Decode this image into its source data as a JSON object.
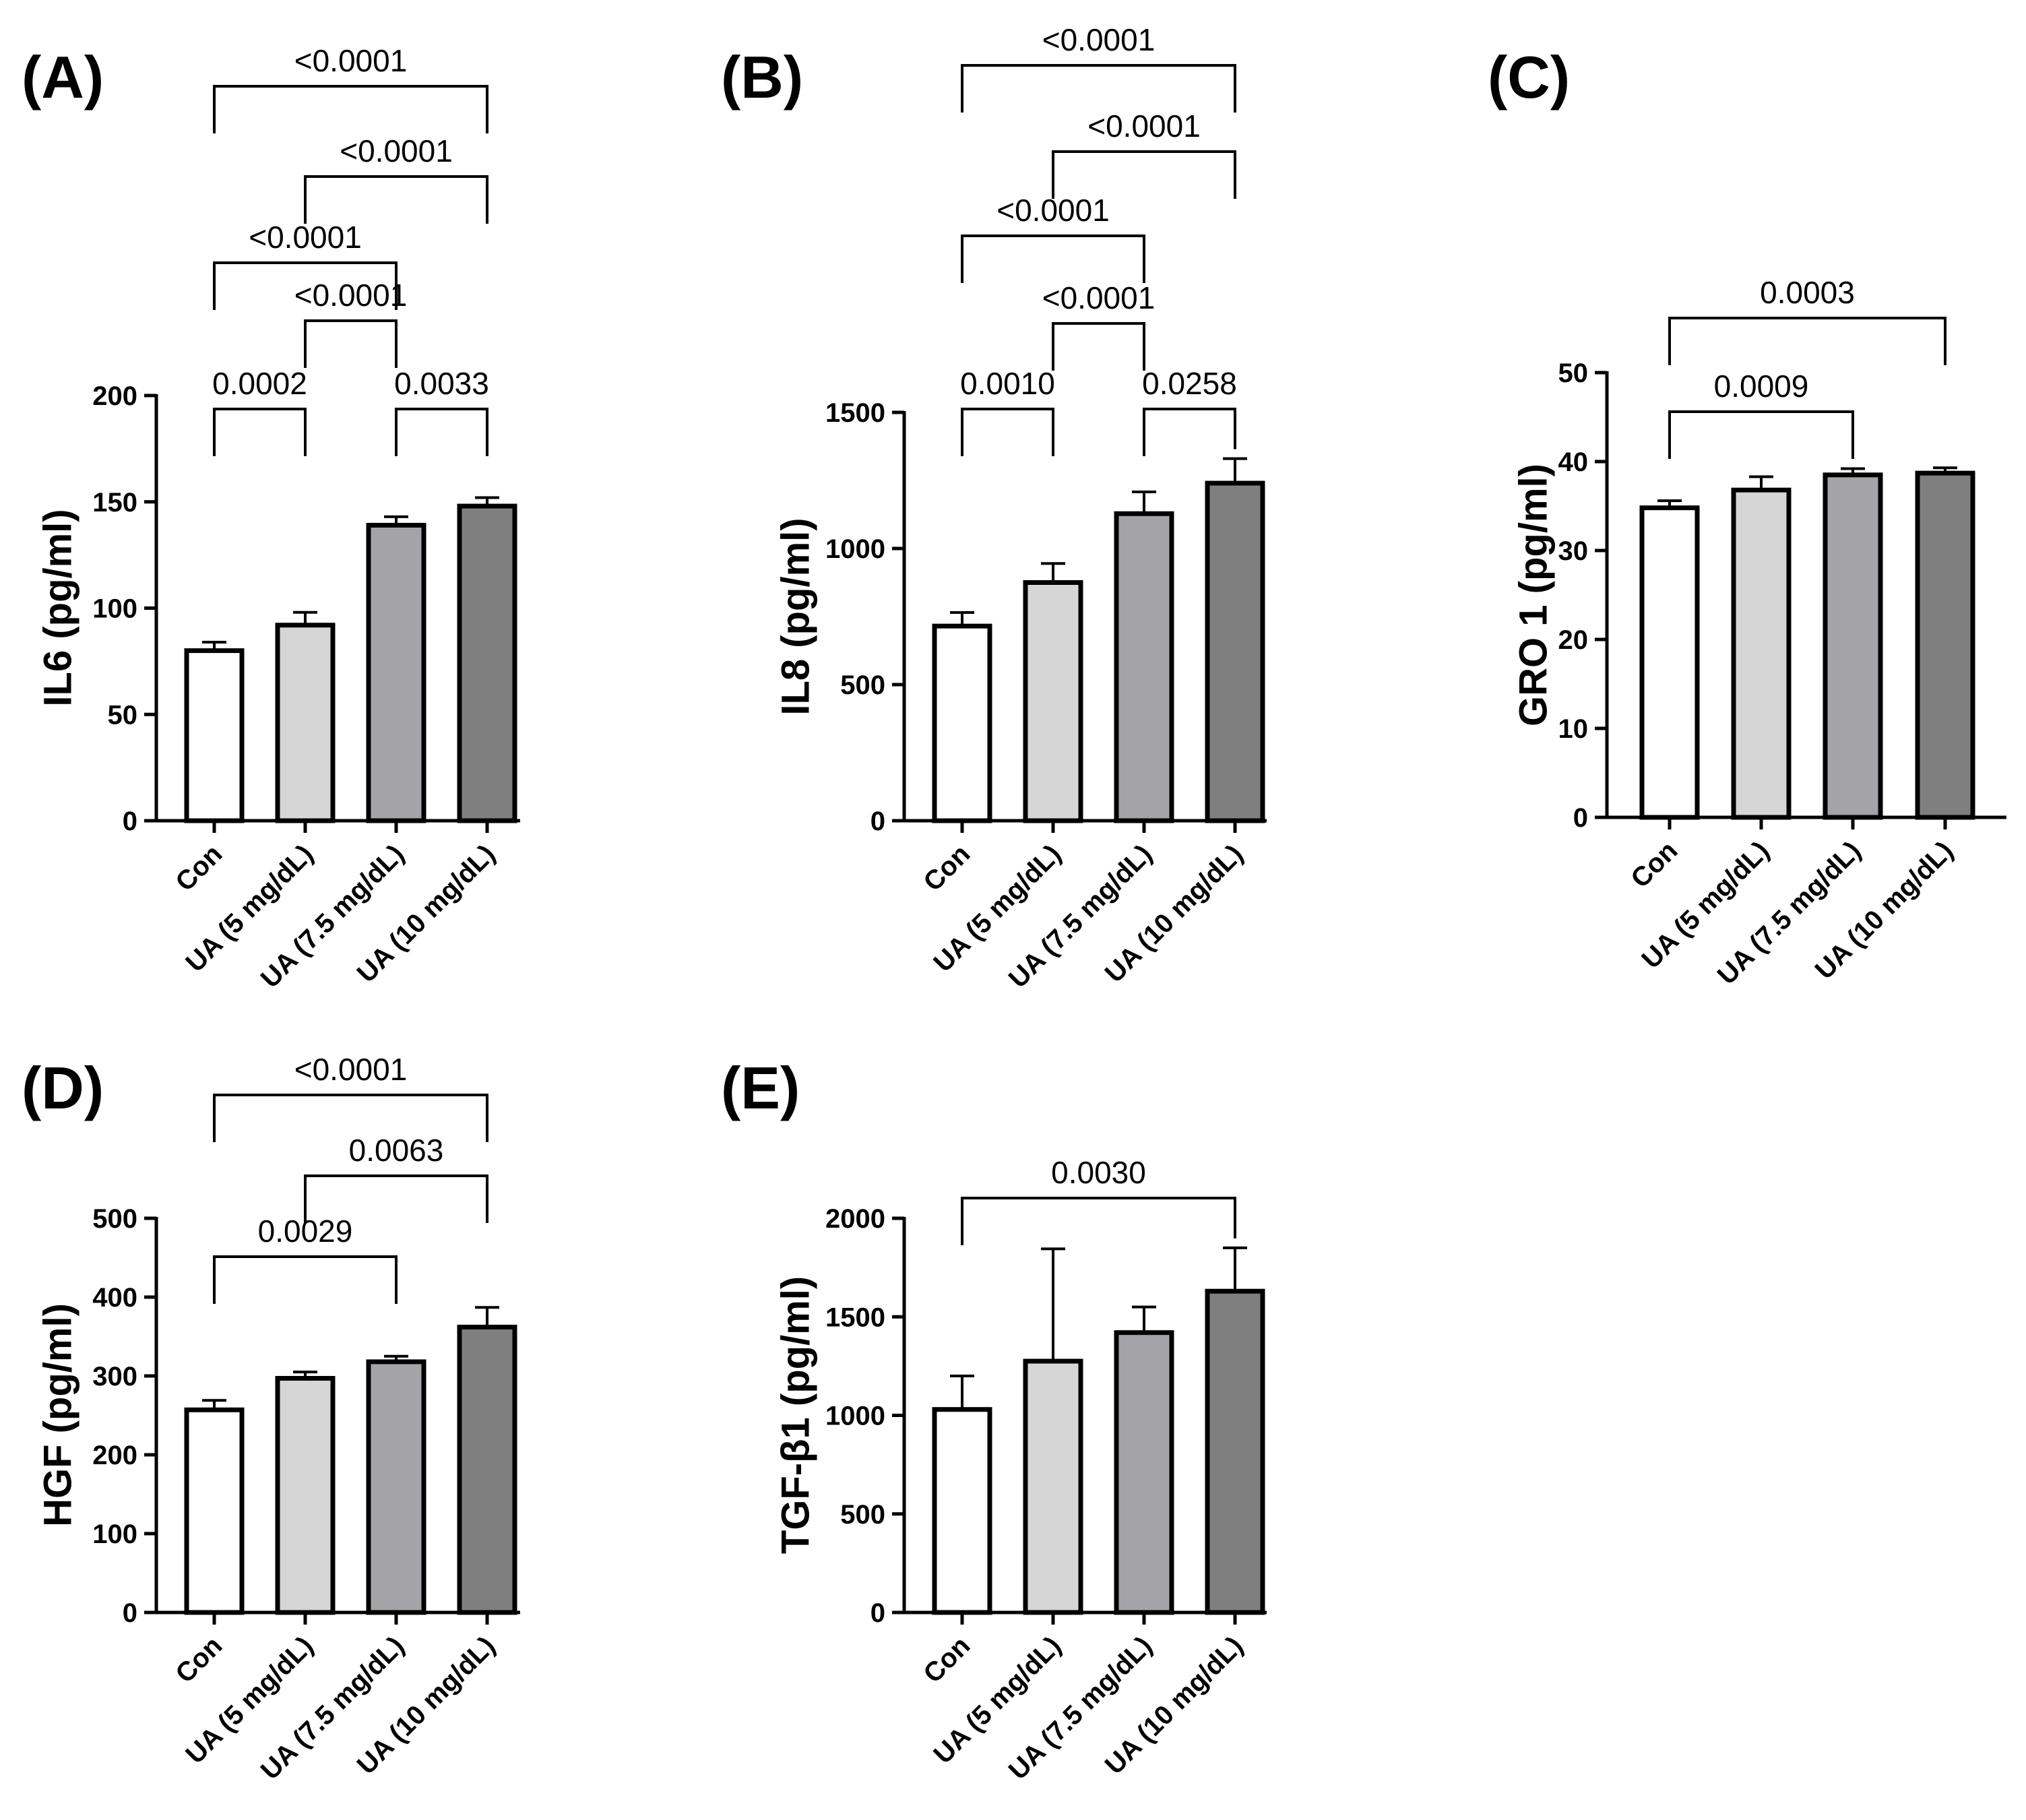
{
  "chart_data": [
    {
      "panel": "(A)",
      "type": "bar",
      "ylabel": "IL6 (pg/ml)",
      "categories": [
        "Con",
        "UA (5 mg/dL)",
        "UA (7.5 mg/dL)",
        "UA (10 mg/dL)"
      ],
      "values": [
        80,
        92,
        139,
        148
      ],
      "errors": [
        4,
        6,
        4,
        4
      ],
      "ylim": [
        0,
        200
      ],
      "yticks": [
        "0",
        "50",
        "100",
        "150",
        "200"
      ],
      "ytick_values": [
        0,
        50,
        100,
        150,
        200
      ],
      "comparisons": [
        {
          "pair": [
            0,
            1
          ],
          "p": "0.0002"
        },
        {
          "pair": [
            2,
            3
          ],
          "p": "0.0033"
        },
        {
          "pair": [
            1,
            2
          ],
          "p": "<0.0001"
        },
        {
          "pair": [
            0,
            2
          ],
          "p": "<0.0001"
        },
        {
          "pair": [
            1,
            3
          ],
          "p": "<0.0001"
        },
        {
          "pair": [
            0,
            3
          ],
          "p": "<0.0001"
        }
      ]
    },
    {
      "panel": "(B)",
      "type": "bar",
      "ylabel": "IL8 (pg/ml)",
      "categories": [
        "Con",
        "UA (5 mg/dL)",
        "UA (7.5 mg/dL)",
        "UA (10 mg/dL)"
      ],
      "values": [
        715,
        875,
        1128,
        1240
      ],
      "errors": [
        50,
        70,
        80,
        90
      ],
      "ylim": [
        0,
        1500
      ],
      "yticks": [
        "0",
        "500",
        "1000",
        "1500"
      ],
      "ytick_values": [
        0,
        500,
        1000,
        1500
      ],
      "comparisons": [
        {
          "pair": [
            0,
            1
          ],
          "p": "0.0010"
        },
        {
          "pair": [
            2,
            3
          ],
          "p": "0.0258"
        },
        {
          "pair": [
            1,
            2
          ],
          "p": "<0.0001"
        },
        {
          "pair": [
            0,
            2
          ],
          "p": "<0.0001"
        },
        {
          "pair": [
            1,
            3
          ],
          "p": "<0.0001"
        },
        {
          "pair": [
            0,
            3
          ],
          "p": "<0.0001"
        }
      ]
    },
    {
      "panel": "(C)",
      "type": "bar",
      "ylabel": "GRO 1 (pg/ml)",
      "categories": [
        "Con",
        "UA (5 mg/dL)",
        "UA (7.5 mg/dL)",
        "UA (10 mg/dL)"
      ],
      "values": [
        34.8,
        36.8,
        38.5,
        38.7
      ],
      "errors": [
        0.8,
        1.5,
        0.7,
        0.6
      ],
      "ylim": [
        0,
        50
      ],
      "yticks": [
        "0",
        "10",
        "20",
        "30",
        "40",
        "50"
      ],
      "ytick_values": [
        0,
        10,
        20,
        30,
        40,
        50
      ],
      "comparisons": [
        {
          "pair": [
            0,
            2
          ],
          "p": "0.0009"
        },
        {
          "pair": [
            0,
            3
          ],
          "p": "0.0003"
        }
      ]
    },
    {
      "panel": "(D)",
      "type": "bar",
      "ylabel": "HGF (pg/ml)",
      "categories": [
        "Con",
        "UA (5 mg/dL)",
        "UA (7.5 mg/dL)",
        "UA (10 mg/dL)"
      ],
      "values": [
        257,
        297,
        318,
        362
      ],
      "errors": [
        12,
        8,
        7,
        25
      ],
      "ylim": [
        0,
        500
      ],
      "yticks": [
        "0",
        "100",
        "200",
        "300",
        "400",
        "500"
      ],
      "ytick_values": [
        0,
        100,
        200,
        300,
        400,
        500
      ],
      "comparisons": [
        {
          "pair": [
            0,
            2
          ],
          "p": "0.0029"
        },
        {
          "pair": [
            1,
            3
          ],
          "p": "0.0063"
        },
        {
          "pair": [
            0,
            3
          ],
          "p": "<0.0001"
        }
      ]
    },
    {
      "panel": "(E)",
      "type": "bar",
      "ylabel": "TGF-β1 (pg/ml)",
      "categories": [
        "Con",
        "UA (5 mg/dL)",
        "UA (7.5 mg/dL)",
        "UA (10 mg/dL)"
      ],
      "values": [
        1030,
        1275,
        1420,
        1630
      ],
      "errors": [
        170,
        570,
        130,
        220
      ],
      "ylim": [
        0,
        2000
      ],
      "yticks": [
        "0",
        "500",
        "1000",
        "1500",
        "2000"
      ],
      "ytick_values": [
        0,
        500,
        1000,
        1500,
        2000
      ],
      "comparisons": [
        {
          "pair": [
            0,
            3
          ],
          "p": "0.0030"
        }
      ]
    }
  ],
  "bar_colors": [
    "#ffffff",
    "#d6d6d6",
    "#a3a3a8",
    "#7f7f7f"
  ],
  "line_color": "#000000"
}
